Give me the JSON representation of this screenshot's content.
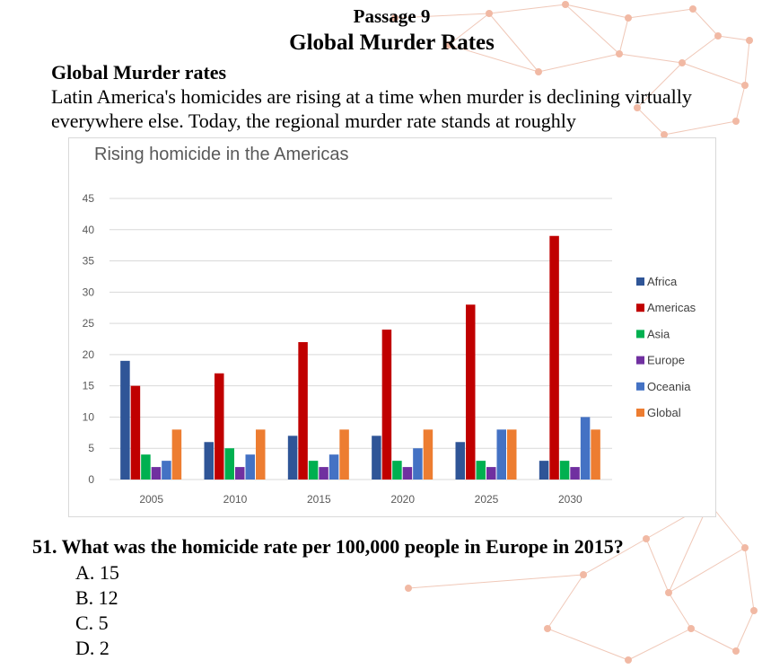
{
  "passage_label": "Passage 9",
  "page_title": "Global Murder Rates",
  "section_heading": "Global Murder rates",
  "intro_text": "Latin America's homicides are rising at a time when murder is declining virtually everywhere else. Today, the regional murder rate stands at roughly",
  "chart_data": {
    "type": "bar",
    "title": "Rising homicide in the Americas",
    "categories": [
      "2005",
      "2010",
      "2015",
      "2020",
      "2025",
      "2030"
    ],
    "series": [
      {
        "name": "Africa",
        "color": "#2f5597",
        "values": [
          19,
          6,
          7,
          7,
          6,
          3
        ]
      },
      {
        "name": "Americas",
        "color": "#c00000",
        "values": [
          15,
          17,
          22,
          24,
          28,
          39
        ]
      },
      {
        "name": "Asia",
        "color": "#00b050",
        "values": [
          4,
          5,
          3,
          3,
          3,
          3
        ]
      },
      {
        "name": "Europe",
        "color": "#7030a0",
        "values": [
          2,
          2,
          2,
          2,
          2,
          2
        ]
      },
      {
        "name": "Oceania",
        "color": "#4472c4",
        "values": [
          3,
          4,
          4,
          5,
          8,
          10
        ]
      },
      {
        "name": "Global",
        "color": "#ed7d31",
        "values": [
          8,
          8,
          8,
          8,
          8,
          8
        ]
      }
    ],
    "ylim": [
      0,
      45
    ],
    "yticks": [
      0,
      5,
      10,
      15,
      20,
      25,
      30,
      35,
      40,
      45
    ],
    "grid": true,
    "legend_position": "right"
  },
  "question": {
    "text": "51. What was the homicide rate per 100,000 people in Europe in 2015?",
    "options": [
      "A.  15",
      "B.  12",
      "C.  5",
      "D.  2"
    ]
  }
}
